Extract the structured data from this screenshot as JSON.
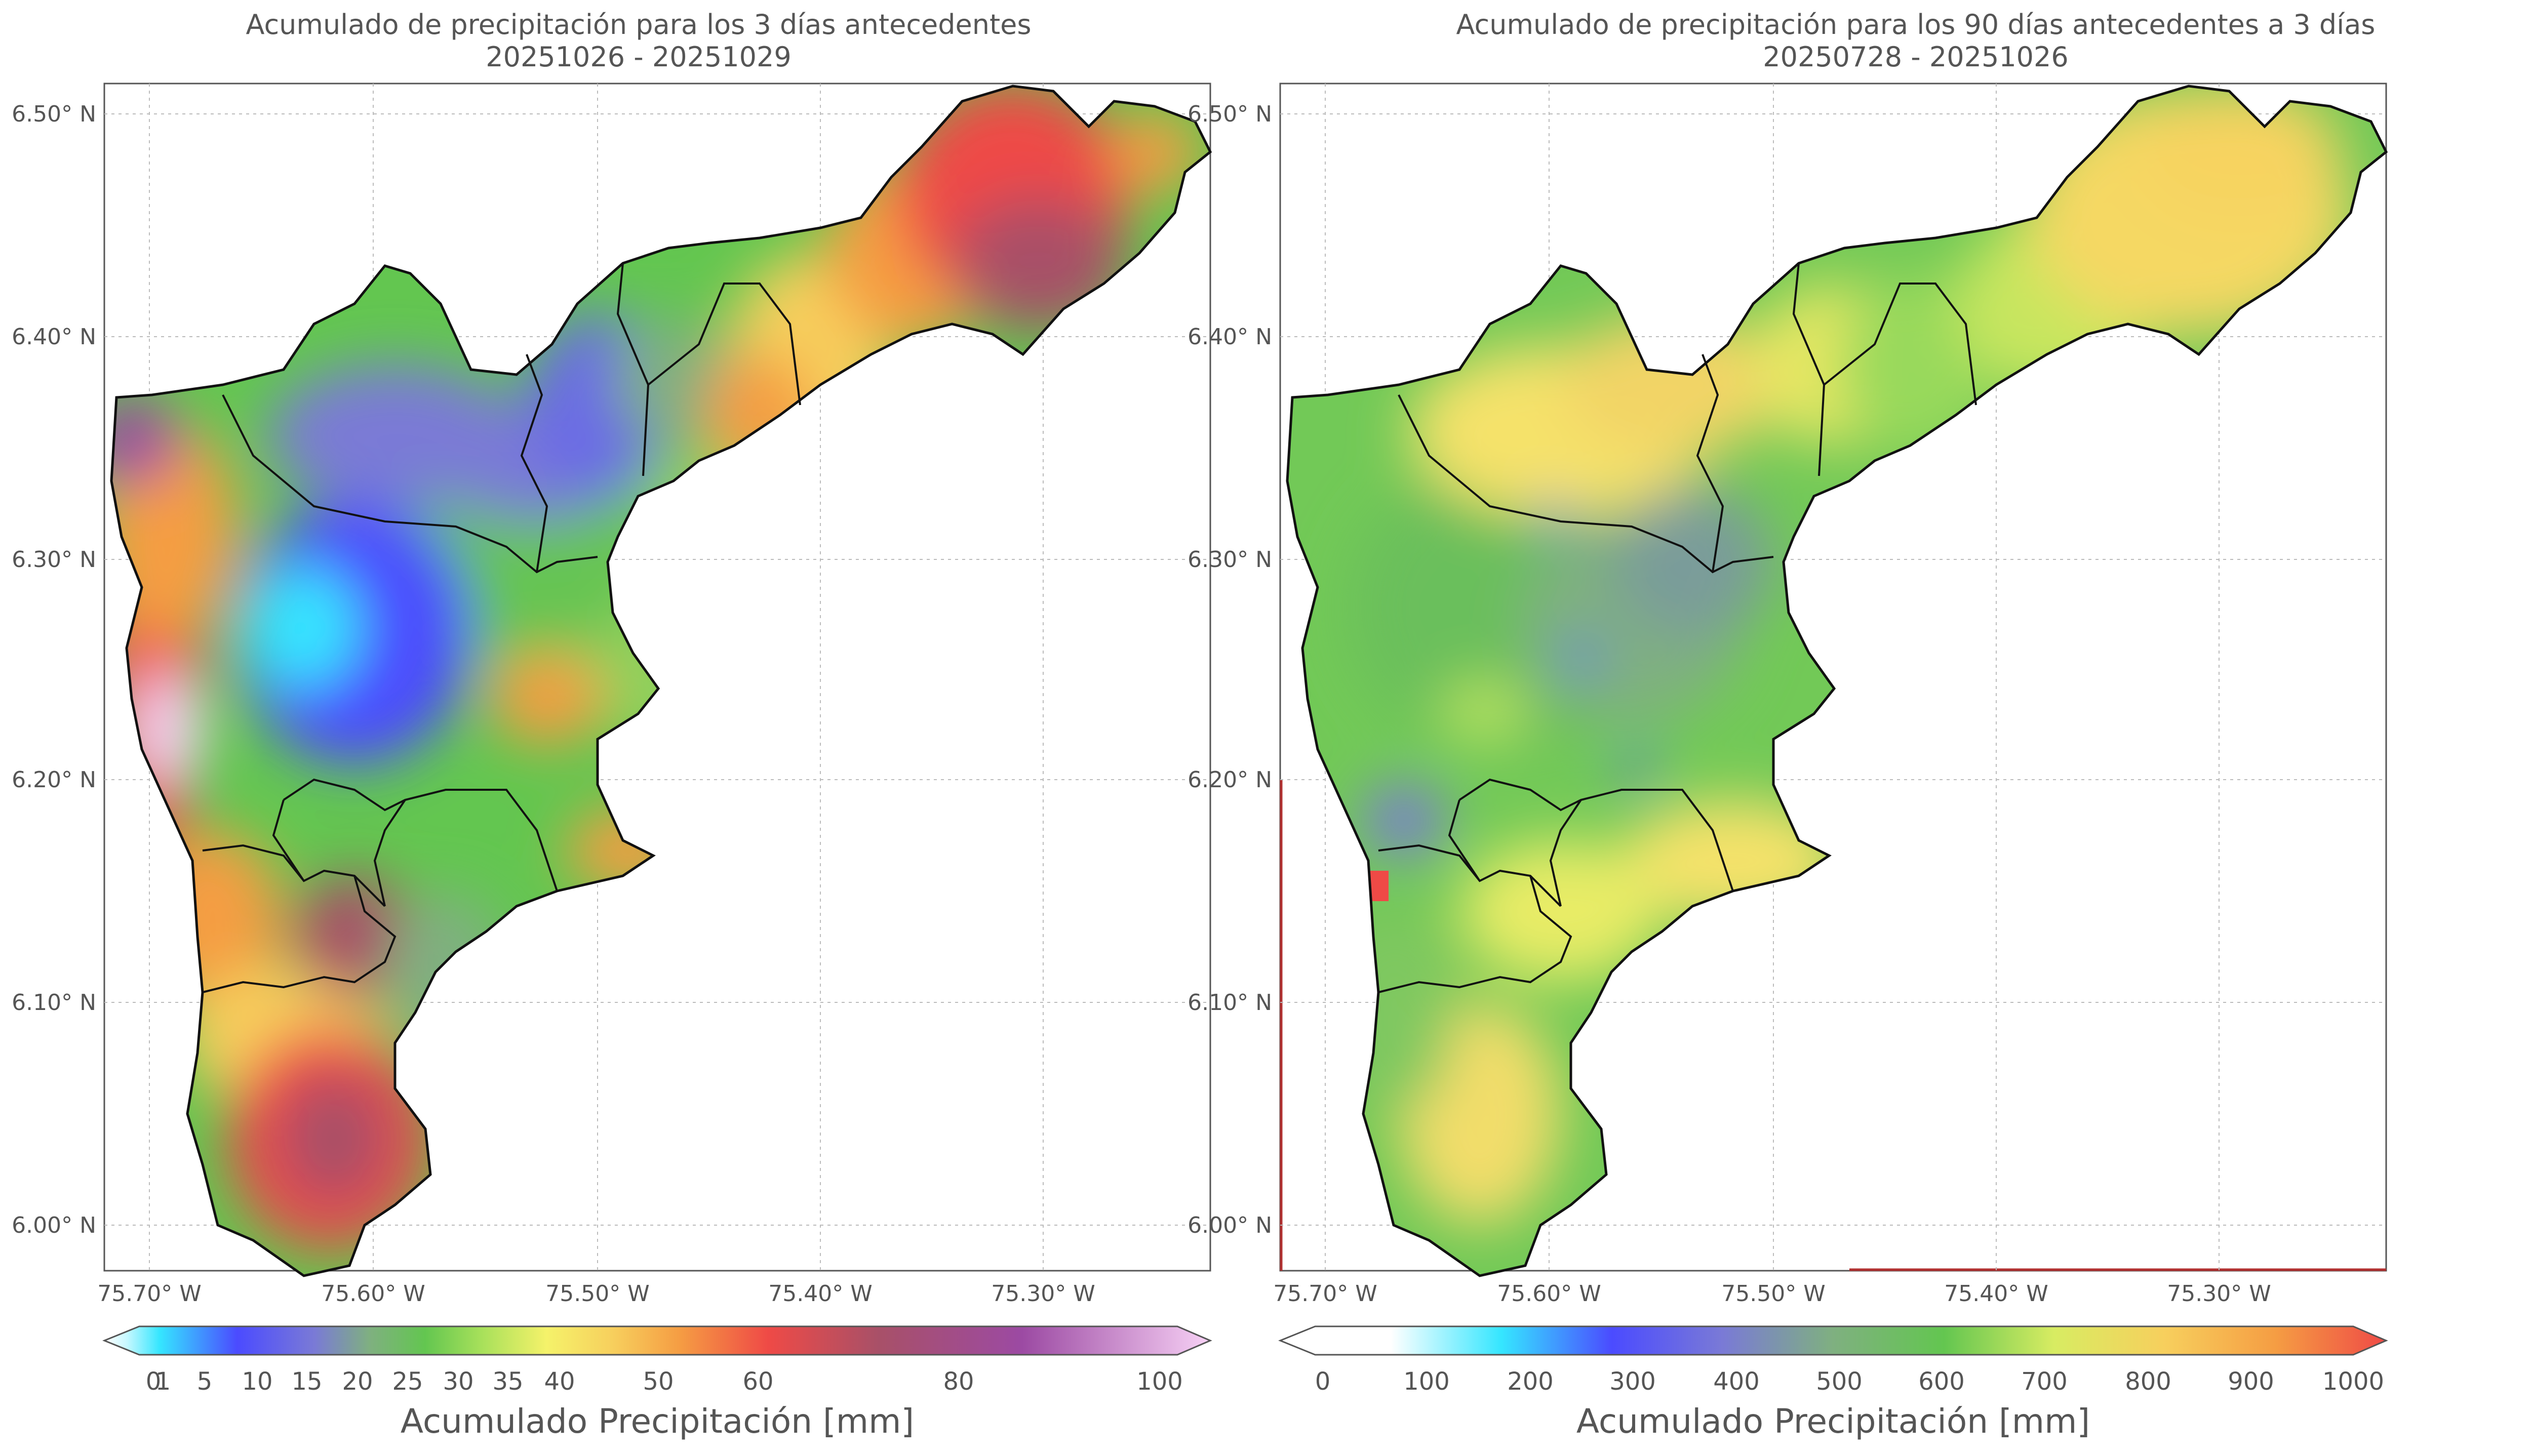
{
  "left_panel": {
    "title_line1": "Acumulado de precipitación para los 3 días antecedentes",
    "title_line2": "20251026 - 20251029",
    "colorbar_label": "Acumulado Precipitación [mm]",
    "colorbar_ticks": [
      "0",
      "1",
      "5",
      "10",
      "15",
      "20",
      "25",
      "30",
      "35",
      "40",
      "50",
      "60",
      "80",
      "100"
    ],
    "colorbar_colors": [
      "#ffffff",
      "#35e6ff",
      "#4b4bff",
      "#7a7ad6",
      "#7fb080",
      "#63c650",
      "#a6e05a",
      "#f5f26a",
      "#f7cf5d",
      "#f59d43",
      "#ef4a46",
      "#a85068",
      "#9c4aa3",
      "#f7d1f5"
    ]
  },
  "right_panel": {
    "title_line1": "Acumulado de precipitación para los 90 días antecedentes a 3 días",
    "title_line2": "20250728 - 20251026",
    "colorbar_label": "Acumulado Precipitación [mm]",
    "colorbar_ticks": [
      "0",
      "100",
      "200",
      "300",
      "400",
      "500",
      "600",
      "700",
      "800",
      "900",
      "1000"
    ],
    "colorbar_colors": [
      "#ffffff",
      "#35e6ff",
      "#4b4bff",
      "#7a7ad6",
      "#7fb080",
      "#63c650",
      "#a6e05a",
      "#f5f26a",
      "#f7cf5d",
      "#f59d43",
      "#ef4a46"
    ]
  },
  "axes": {
    "y_labels": [
      "6.50° N",
      "6.40° N",
      "6.30° N",
      "6.20° N",
      "6.10° N",
      "6.00° N"
    ],
    "x_labels": [
      "75.70° W",
      "75.60° W",
      "75.50° W",
      "75.40° W",
      "75.30° W"
    ]
  }
}
